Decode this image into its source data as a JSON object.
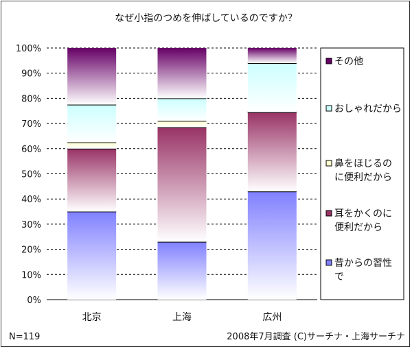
{
  "chart_data": {
    "type": "bar",
    "stacked": true,
    "percent": true,
    "title": "なぜ小指のつめを伸ばしているのですか？",
    "categories": [
      "北京",
      "上海",
      "広州"
    ],
    "series": [
      {
        "name": "昔からの習性で",
        "label_lines": [
          "昔からの習性",
          "で"
        ],
        "values": [
          35,
          23,
          43
        ],
        "color": "#8080ff"
      },
      {
        "name": "耳をかくのに便利だから",
        "label_lines": [
          "耳をかくのに",
          "便利だから"
        ],
        "values": [
          25,
          45.5,
          31.5
        ],
        "color": "#993366"
      },
      {
        "name": "鼻をほじるのに便利だから",
        "label_lines": [
          "鼻をほじるの",
          "に便利だから"
        ],
        "values": [
          2.5,
          2.5,
          0
        ],
        "color": "#ffffcc"
      },
      {
        "name": "おしゃれだから",
        "label_lines": [
          "おしゃれだから"
        ],
        "values": [
          15,
          9,
          19.5
        ],
        "color": "#ccffff"
      },
      {
        "name": "その他",
        "label_lines": [
          "その他"
        ],
        "values": [
          22.5,
          20,
          6
        ],
        "color": "#660066"
      }
    ],
    "yticks": [
      "0%",
      "10%",
      "20%",
      "30%",
      "40%",
      "50%",
      "60%",
      "70%",
      "80%",
      "90%",
      "100%"
    ],
    "ylim": [
      0,
      100
    ],
    "grid": true,
    "legend_position": "right"
  },
  "footer": {
    "n_label": "N=119",
    "source": "2008年7月調査 (C)サーチナ・上海サーチナ"
  }
}
